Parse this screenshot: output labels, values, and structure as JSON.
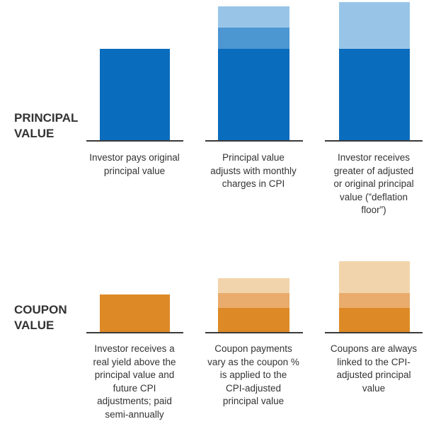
{
  "colors": {
    "principal_dark": "#0a6cbd",
    "principal_mid": "#4c96d2",
    "principal_light": "#98c5e7",
    "coupon_dark": "#dd8a26",
    "coupon_mid": "#e9ac6c",
    "coupon_light": "#f2d4ac",
    "baseline": "#3a3a3a",
    "text": "#333333"
  },
  "rows": [
    {
      "label_lines": [
        "PRINCIPAL",
        "VALUE"
      ],
      "columns": [
        {
          "segments": [
            {
              "shade": "dark",
              "value": 1.0
            }
          ],
          "caption_lines": [
            "Investor pays original",
            "principal value"
          ]
        },
        {
          "segments": [
            {
              "shade": "dark",
              "value": 1.0
            },
            {
              "shade": "mid",
              "value": 0.23
            },
            {
              "shade": "light",
              "value": 0.23
            }
          ],
          "caption_lines": [
            "Principal value",
            "adjusts with monthly",
            "charges in CPI"
          ]
        },
        {
          "segments": [
            {
              "shade": "dark",
              "value": 1.0
            },
            {
              "shade": "light",
              "value": 0.51
            }
          ],
          "caption_lines": [
            "Investor receives",
            "greater of adjusted",
            "or original principal",
            "value (”deflation",
            "floor”)"
          ]
        }
      ]
    },
    {
      "label_lines": [
        "COUPON",
        "VALUE"
      ],
      "columns": [
        {
          "segments": [
            {
              "shade": "dark",
              "value": 1.0
            }
          ],
          "caption_lines": [
            "Investor receives a",
            "real yield above the",
            "principal value and",
            "future CPI",
            "adjustments; paid",
            "semi-annually"
          ]
        },
        {
          "segments": [
            {
              "shade": "dark",
              "value": 0.65
            },
            {
              "shade": "mid",
              "value": 0.4
            },
            {
              "shade": "light",
              "value": 0.4
            }
          ],
          "caption_lines": [
            "Coupon payments",
            "vary as the coupon %",
            "is applied to the",
            "CPI-adjusted",
            "principal value"
          ]
        },
        {
          "segments": [
            {
              "shade": "dark",
              "value": 0.65
            },
            {
              "shade": "mid",
              "value": 0.4
            },
            {
              "shade": "light",
              "value": 0.85
            }
          ],
          "caption_lines": [
            "Coupons are always",
            "linked to the CPI-",
            "adjusted principal",
            "value"
          ]
        }
      ]
    }
  ]
}
